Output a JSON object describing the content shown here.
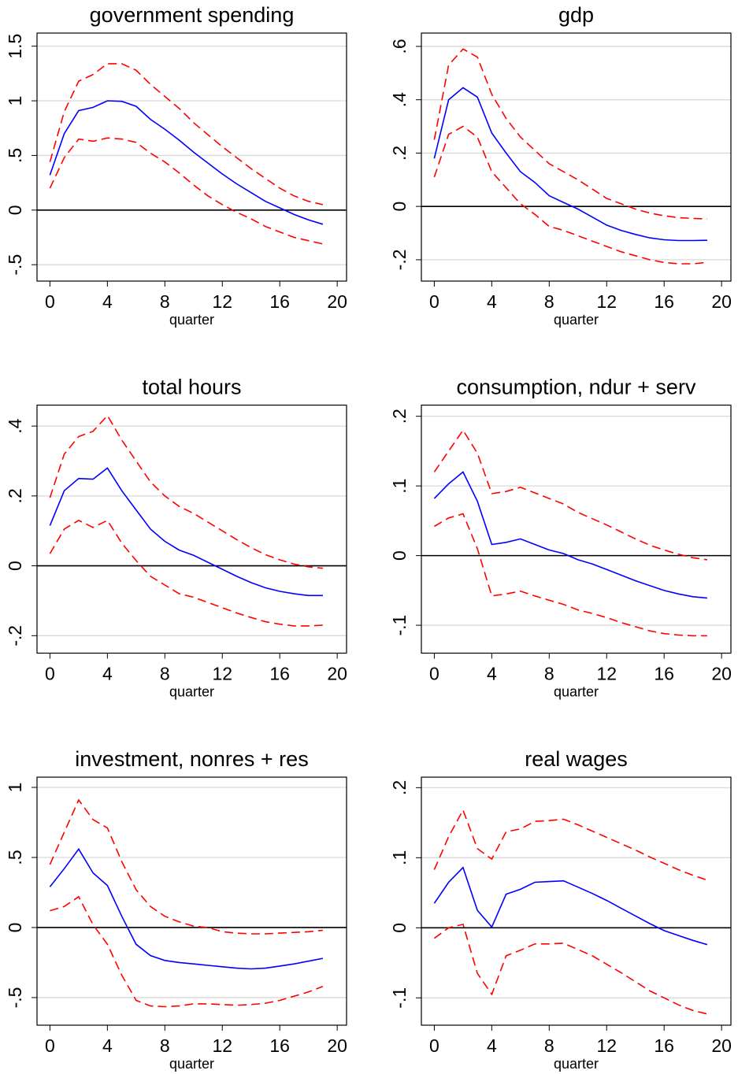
{
  "chart_data": [
    {
      "type": "line",
      "title": "government spending",
      "xlabel": "quarter",
      "x": [
        0,
        1,
        2,
        3,
        4,
        5,
        6,
        7,
        8,
        9,
        10,
        11,
        12,
        13,
        14,
        15,
        16,
        17,
        18,
        19
      ],
      "xlim": [
        -0.9,
        20.65
      ],
      "xticks": [
        0,
        4,
        8,
        12,
        16,
        20
      ],
      "ylim": [
        -0.65,
        1.62
      ],
      "yticks": [
        {
          "value": -0.5,
          "label": "-.5"
        },
        0,
        {
          "value": 0.5,
          "label": ".5"
        },
        1,
        1.5
      ],
      "grid": true,
      "reference_line": 0,
      "series": [
        {
          "color": "#0000ff",
          "line_style": "solid",
          "values": [
            0.32,
            0.7,
            0.91,
            0.94,
            1.0,
            0.995,
            0.95,
            0.83,
            0.74,
            0.64,
            0.53,
            0.43,
            0.33,
            0.24,
            0.16,
            0.08,
            0.02,
            -0.04,
            -0.09,
            -0.13
          ]
        },
        {
          "color": "#ff0000",
          "line_style": "dashed",
          "values": [
            0.44,
            0.9,
            1.18,
            1.24,
            1.34,
            1.34,
            1.28,
            1.15,
            1.04,
            0.93,
            0.8,
            0.69,
            0.58,
            0.48,
            0.38,
            0.29,
            0.2,
            0.13,
            0.08,
            0.05
          ]
        },
        {
          "color": "#ff0000",
          "line_style": "dashed",
          "values": [
            0.2,
            0.48,
            0.65,
            0.63,
            0.66,
            0.65,
            0.62,
            0.52,
            0.44,
            0.34,
            0.23,
            0.13,
            0.05,
            -0.02,
            -0.08,
            -0.15,
            -0.2,
            -0.25,
            -0.28,
            -0.31
          ]
        }
      ]
    },
    {
      "type": "line",
      "title": "gdp",
      "xlabel": "quarter",
      "x": [
        0,
        1,
        2,
        3,
        4,
        5,
        6,
        7,
        8,
        9,
        10,
        11,
        12,
        13,
        14,
        15,
        16,
        17,
        18,
        19
      ],
      "xlim": [
        -0.9,
        20.65
      ],
      "xticks": [
        0,
        4,
        8,
        12,
        16,
        20
      ],
      "ylim": [
        -0.28,
        0.65
      ],
      "yticks": [
        {
          "value": -0.2,
          "label": "-.2"
        },
        0,
        {
          "value": 0.2,
          "label": ".2"
        },
        {
          "value": 0.4,
          "label": ".4"
        },
        {
          "value": 0.6,
          "label": ".6"
        }
      ],
      "grid": true,
      "reference_line": 0,
      "series": [
        {
          "color": "#0000ff",
          "line_style": "solid",
          "values": [
            0.18,
            0.4,
            0.445,
            0.41,
            0.275,
            0.2,
            0.13,
            0.09,
            0.04,
            0.015,
            -0.01,
            -0.04,
            -0.07,
            -0.09,
            -0.105,
            -0.118,
            -0.125,
            -0.128,
            -0.128,
            -0.127
          ]
        },
        {
          "color": "#ff0000",
          "line_style": "dashed",
          "values": [
            0.25,
            0.53,
            0.59,
            0.56,
            0.42,
            0.33,
            0.26,
            0.21,
            0.16,
            0.13,
            0.1,
            0.065,
            0.03,
            0.01,
            -0.01,
            -0.025,
            -0.035,
            -0.042,
            -0.045,
            -0.047
          ]
        },
        {
          "color": "#ff0000",
          "line_style": "dashed",
          "values": [
            0.11,
            0.27,
            0.3,
            0.26,
            0.13,
            0.07,
            0.01,
            -0.03,
            -0.075,
            -0.09,
            -0.11,
            -0.13,
            -0.15,
            -0.17,
            -0.185,
            -0.2,
            -0.21,
            -0.215,
            -0.215,
            -0.21
          ]
        }
      ]
    },
    {
      "type": "line",
      "title": "total hours",
      "xlabel": "quarter",
      "x": [
        0,
        1,
        2,
        3,
        4,
        5,
        6,
        7,
        8,
        9,
        10,
        11,
        12,
        13,
        14,
        15,
        16,
        17,
        18,
        19
      ],
      "xlim": [
        -0.9,
        20.65
      ],
      "xticks": [
        0,
        4,
        8,
        12,
        16,
        20
      ],
      "ylim": [
        -0.25,
        0.46
      ],
      "yticks": [
        {
          "value": -0.2,
          "label": "-.2"
        },
        0,
        {
          "value": 0.2,
          "label": ".2"
        },
        {
          "value": 0.4,
          "label": ".4"
        }
      ],
      "grid": true,
      "reference_line": 0,
      "series": [
        {
          "color": "#0000ff",
          "line_style": "solid",
          "values": [
            0.115,
            0.215,
            0.25,
            0.248,
            0.28,
            0.215,
            0.16,
            0.105,
            0.07,
            0.045,
            0.03,
            0.01,
            -0.01,
            -0.03,
            -0.048,
            -0.063,
            -0.073,
            -0.08,
            -0.085,
            -0.085
          ]
        },
        {
          "color": "#ff0000",
          "line_style": "dashed",
          "values": [
            0.195,
            0.32,
            0.37,
            0.385,
            0.43,
            0.36,
            0.3,
            0.24,
            0.2,
            0.17,
            0.15,
            0.125,
            0.1,
            0.075,
            0.052,
            0.032,
            0.017,
            0.005,
            -0.003,
            -0.007
          ]
        },
        {
          "color": "#ff0000",
          "line_style": "dashed",
          "values": [
            0.035,
            0.105,
            0.13,
            0.11,
            0.13,
            0.065,
            0.015,
            -0.03,
            -0.055,
            -0.08,
            -0.09,
            -0.105,
            -0.12,
            -0.135,
            -0.148,
            -0.16,
            -0.167,
            -0.172,
            -0.172,
            -0.17
          ]
        }
      ]
    },
    {
      "type": "line",
      "title": "consumption, ndur + serv",
      "xlabel": "quarter",
      "x": [
        0,
        1,
        2,
        3,
        4,
        5,
        6,
        7,
        8,
        9,
        10,
        11,
        12,
        13,
        14,
        15,
        16,
        17,
        18,
        19
      ],
      "xlim": [
        -0.9,
        20.65
      ],
      "xticks": [
        0,
        4,
        8,
        12,
        16,
        20
      ],
      "ylim": [
        -0.14,
        0.216
      ],
      "yticks": [
        {
          "value": -0.1,
          "label": "-.1"
        },
        0,
        {
          "value": 0.1,
          "label": ".1"
        },
        {
          "value": 0.2,
          "label": ".2"
        }
      ],
      "grid": true,
      "reference_line": 0,
      "series": [
        {
          "color": "#0000ff",
          "line_style": "solid",
          "values": [
            0.082,
            0.103,
            0.12,
            0.078,
            0.016,
            0.019,
            0.024,
            0.016,
            0.008,
            0.003,
            -0.006,
            -0.012,
            -0.02,
            -0.028,
            -0.036,
            -0.043,
            -0.05,
            -0.055,
            -0.059,
            -0.061
          ]
        },
        {
          "color": "#ff0000",
          "line_style": "dashed",
          "values": [
            0.12,
            0.15,
            0.18,
            0.147,
            0.089,
            0.092,
            0.098,
            0.09,
            0.082,
            0.074,
            0.062,
            0.053,
            0.044,
            0.034,
            0.024,
            0.015,
            0.008,
            0.002,
            -0.003,
            -0.006
          ]
        },
        {
          "color": "#ff0000",
          "line_style": "dashed",
          "values": [
            0.042,
            0.054,
            0.06,
            0.01,
            -0.058,
            -0.055,
            -0.051,
            -0.058,
            -0.064,
            -0.07,
            -0.078,
            -0.083,
            -0.089,
            -0.096,
            -0.102,
            -0.108,
            -0.112,
            -0.114,
            -0.115,
            -0.115
          ]
        }
      ]
    },
    {
      "type": "line",
      "title": "investment, nonres + res",
      "xlabel": "quarter",
      "x": [
        0,
        1,
        2,
        3,
        4,
        5,
        6,
        7,
        8,
        9,
        10,
        11,
        12,
        13,
        14,
        15,
        16,
        17,
        18,
        19
      ],
      "xlim": [
        -0.9,
        20.65
      ],
      "xticks": [
        0,
        4,
        8,
        12,
        16,
        20
      ],
      "ylim": [
        -0.697,
        1.073
      ],
      "yticks": [
        {
          "value": -0.5,
          "label": "-.5"
        },
        0,
        {
          "value": 0.5,
          "label": ".5"
        },
        1
      ],
      "grid": true,
      "reference_line": 0,
      "series": [
        {
          "color": "#0000ff",
          "line_style": "solid",
          "values": [
            0.29,
            0.42,
            0.56,
            0.39,
            0.3,
            0.08,
            -0.12,
            -0.2,
            -0.235,
            -0.25,
            -0.26,
            -0.27,
            -0.28,
            -0.29,
            -0.295,
            -0.29,
            -0.275,
            -0.26,
            -0.24,
            -0.22
          ]
        },
        {
          "color": "#ff0000",
          "line_style": "dashed",
          "values": [
            0.45,
            0.68,
            0.91,
            0.77,
            0.71,
            0.47,
            0.27,
            0.15,
            0.08,
            0.04,
            0.01,
            0.0,
            -0.03,
            -0.04,
            -0.045,
            -0.045,
            -0.04,
            -0.035,
            -0.03,
            -0.02
          ]
        },
        {
          "color": "#ff0000",
          "line_style": "dashed",
          "values": [
            0.12,
            0.15,
            0.22,
            0.02,
            -0.12,
            -0.34,
            -0.52,
            -0.56,
            -0.565,
            -0.56,
            -0.545,
            -0.545,
            -0.55,
            -0.555,
            -0.55,
            -0.54,
            -0.52,
            -0.49,
            -0.46,
            -0.42
          ]
        }
      ]
    },
    {
      "type": "line",
      "title": "real wages",
      "xlabel": "quarter",
      "x": [
        0,
        1,
        2,
        3,
        4,
        5,
        6,
        7,
        8,
        9,
        10,
        11,
        12,
        13,
        14,
        15,
        16,
        17,
        18,
        19
      ],
      "xlim": [
        -0.9,
        20.65
      ],
      "xticks": [
        0,
        4,
        8,
        12,
        16,
        20
      ],
      "ylim": [
        -0.139,
        0.215
      ],
      "yticks": [
        {
          "value": -0.1,
          "label": "-.1"
        },
        0,
        {
          "value": 0.1,
          "label": ".1"
        },
        {
          "value": 0.2,
          "label": ".2"
        }
      ],
      "grid": true,
      "reference_line": 0,
      "series": [
        {
          "color": "#0000ff",
          "line_style": "solid",
          "values": [
            0.035,
            0.065,
            0.086,
            0.025,
            0.001,
            0.048,
            0.055,
            0.065,
            0.066,
            0.067,
            0.058,
            0.049,
            0.039,
            0.028,
            0.017,
            0.006,
            -0.004,
            -0.011,
            -0.018,
            -0.024
          ]
        },
        {
          "color": "#ff0000",
          "line_style": "dashed",
          "values": [
            0.083,
            0.13,
            0.168,
            0.113,
            0.098,
            0.137,
            0.141,
            0.152,
            0.153,
            0.155,
            0.147,
            0.138,
            0.129,
            0.12,
            0.111,
            0.101,
            0.092,
            0.083,
            0.075,
            0.068
          ]
        },
        {
          "color": "#ff0000",
          "line_style": "dashed",
          "values": [
            -0.015,
            0.0,
            0.005,
            -0.065,
            -0.095,
            -0.04,
            -0.032,
            -0.023,
            -0.023,
            -0.022,
            -0.031,
            -0.04,
            -0.052,
            -0.064,
            -0.077,
            -0.09,
            -0.1,
            -0.11,
            -0.118,
            -0.123
          ]
        }
      ]
    }
  ]
}
